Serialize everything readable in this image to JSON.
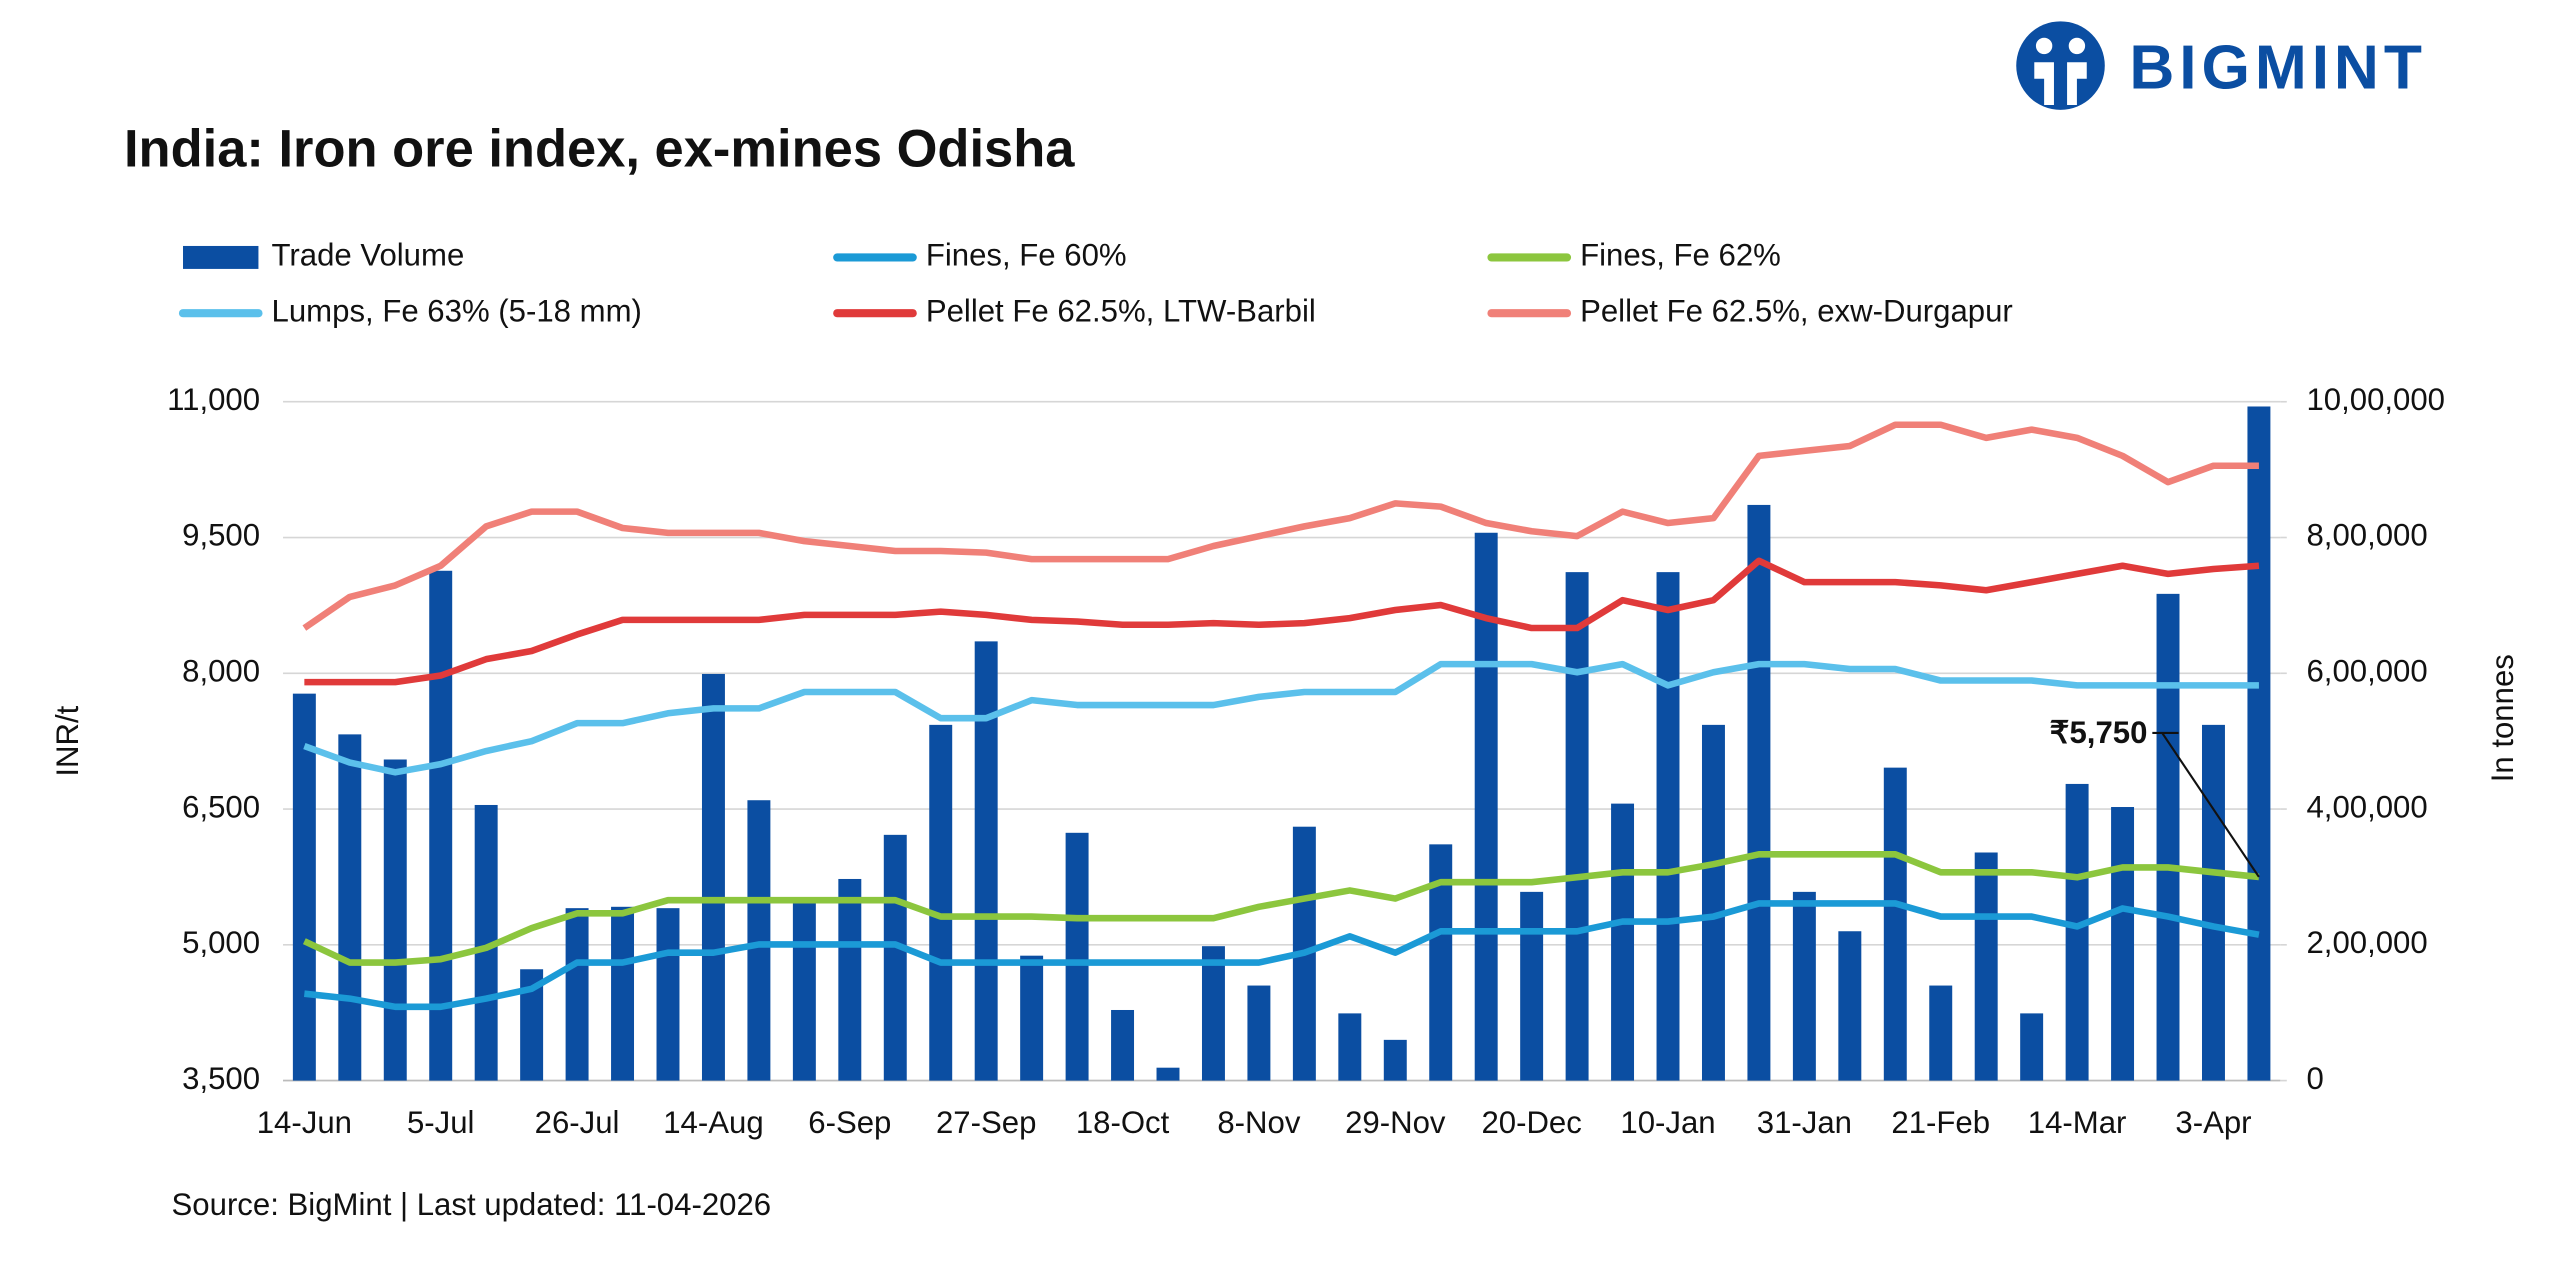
{
  "chart_data": {
    "type": "bar-line",
    "title": "India: Iron ore index, ex-mines Odisha",
    "logo": "BIGMINT",
    "y_label": "INR/t",
    "y2_label": "In tonnes",
    "source": "Source: BigMint | Last updated: 11-04-2026",
    "annotations": [
      {
        "text": "₹5,750"
      }
    ],
    "categories": [
      "14-Jun",
      null,
      null,
      "5-Jul",
      null,
      null,
      "26-Jul",
      null,
      null,
      "14-Aug",
      null,
      null,
      "6-Sep",
      null,
      null,
      "27-Sep",
      null,
      null,
      "18-Oct",
      null,
      null,
      "8-Nov",
      null,
      null,
      "29-Nov",
      null,
      null,
      "20-Dec",
      null,
      null,
      "10-Jan",
      null,
      null,
      "31-Jan",
      null,
      null,
      "21-Feb",
      null,
      null,
      "14-Mar",
      null,
      null,
      "3-Apr",
      null
    ],
    "ylim": [
      3500,
      11000
    ],
    "yticks": [
      {
        "value": 3500,
        "label": "3,500"
      },
      {
        "value": 5000,
        "label": "5,000"
      },
      {
        "value": 6500,
        "label": "6,500"
      },
      {
        "value": 8000,
        "label": "8,000"
      },
      {
        "value": 9500,
        "label": "9,500"
      },
      {
        "value": 11000,
        "label": "11,000"
      }
    ],
    "y2lim": [
      0,
      1000000
    ],
    "y2ticks": [
      0,
      {
        "value": 200000,
        "label": "2,00,000"
      },
      {
        "value": 400000,
        "label": "4,00,000"
      },
      {
        "value": 600000,
        "label": "6,00,000"
      },
      {
        "value": 800000,
        "label": "8,00,000"
      },
      {
        "value": 1000000,
        "label": "10,00,000"
      }
    ],
    "grid": true,
    "series": [
      {
        "name": "Trade Volume",
        "type": "bar",
        "axis": "y2",
        "color": "#0b4ea2",
        "values": [
          570000,
          510000,
          473000,
          751000,
          406000,
          164000,
          254000,
          256000,
          254000,
          599000,
          413000,
          266000,
          297000,
          362000,
          524000,
          647000,
          184000,
          365000,
          104000,
          19000,
          198000,
          140000,
          374000,
          99000,
          60000,
          348000,
          807000,
          278000,
          749000,
          408000,
          749000,
          524000,
          848000,
          278000,
          220000,
          461000,
          140000,
          336000,
          99000,
          437000,
          403000,
          717000,
          524000,
          993000
        ]
      },
      {
        "name": "Fines, Fe 60%",
        "type": "line",
        "color": "#1b9ad6",
        "values": [
          4460,
          4406,
          4315,
          4315,
          4406,
          4514,
          4804,
          4804,
          4913,
          4913,
          5004,
          5004,
          5004,
          5004,
          4804,
          4804,
          4804,
          4804,
          4804,
          4804,
          4804,
          4804,
          4913,
          5094,
          4913,
          5149,
          5149,
          5149,
          5149,
          5257,
          5257,
          5312,
          5457,
          5457,
          5457,
          5457,
          5312,
          5312,
          5312,
          5203,
          5402,
          5312,
          5203,
          5112
        ]
      },
      {
        "name": "Fines, Fe 62%",
        "type": "line",
        "color": "#8cc63e",
        "values": [
          5040,
          4804,
          4804,
          4841,
          4967,
          5185,
          5348,
          5348,
          5493,
          5493,
          5493,
          5493,
          5493,
          5493,
          5312,
          5312,
          5312,
          5294,
          5294,
          5294,
          5294,
          5420,
          5511,
          5601,
          5511,
          5692,
          5692,
          5692,
          5746,
          5801,
          5801,
          5891,
          6000,
          6000,
          6000,
          6000,
          5801,
          5801,
          5801,
          5746,
          5855,
          5855,
          5801,
          5750
        ]
      },
      {
        "name": "Lumps, Fe 63% (5-18 mm)",
        "type": "line",
        "color": "#5bc0eb",
        "values": [
          7196,
          7014,
          6906,
          6996,
          7141,
          7250,
          7449,
          7449,
          7558,
          7612,
          7612,
          7793,
          7793,
          7793,
          7504,
          7504,
          7703,
          7649,
          7649,
          7649,
          7649,
          7739,
          7793,
          7793,
          7793,
          8101,
          8101,
          8101,
          8011,
          8101,
          7866,
          8011,
          8101,
          8101,
          8047,
          8047,
          7920,
          7920,
          7920,
          7866,
          7866,
          7866,
          7866,
          7866
        ]
      },
      {
        "name": "Pellet Fe 62.5%, LTW-Barbil",
        "type": "line",
        "color": "#e03a3a",
        "values": [
          7902,
          7902,
          7902,
          7975,
          8156,
          8246,
          8428,
          8590,
          8590,
          8590,
          8590,
          8645,
          8645,
          8645,
          8681,
          8645,
          8590,
          8572,
          8536,
          8536,
          8554,
          8536,
          8554,
          8609,
          8699,
          8754,
          8609,
          8500,
          8500,
          8808,
          8699,
          8808,
          9243,
          9007,
          9007,
          9007,
          8971,
          8917,
          9007,
          9098,
          9188,
          9098,
          9152,
          9188
        ]
      },
      {
        "name": "Pellet Fe  62.5%, exw-Durgapur",
        "type": "line",
        "color": "#f08078",
        "values": [
          8500,
          8844,
          8971,
          9188,
          9623,
          9786,
          9786,
          9605,
          9551,
          9551,
          9551,
          9460,
          9406,
          9351,
          9351,
          9333,
          9261,
          9261,
          9261,
          9261,
          9406,
          9515,
          9623,
          9714,
          9877,
          9841,
          9660,
          9569,
          9515,
          9786,
          9660,
          9714,
          10402,
          10457,
          10511,
          10746,
          10746,
          10601,
          10692,
          10601,
          10402,
          10112,
          10293,
          10293
        ]
      }
    ]
  }
}
